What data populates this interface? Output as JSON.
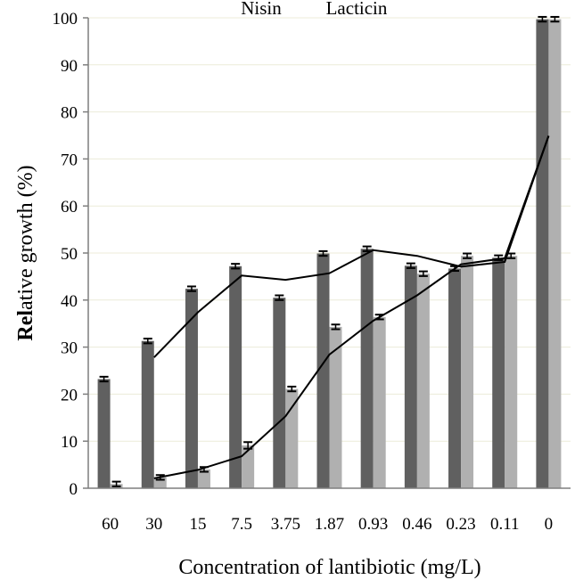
{
  "chart_data": {
    "type": "bar",
    "categories": [
      "60",
      "30",
      "15",
      "7.5",
      "3.75",
      "1.87",
      "0.93",
      "0.46",
      "0.23",
      "0.11",
      "0"
    ],
    "series": [
      {
        "name": "Nisin",
        "values": [
          23.2,
          31.3,
          42.4,
          47.2,
          40.5,
          49.9,
          50.9,
          47.3,
          46.7,
          49.0,
          99.7
        ],
        "errors": [
          0.5,
          0.5,
          0.5,
          0.5,
          0.5,
          0.5,
          0.5,
          0.5,
          0.5,
          0.5,
          0.5
        ],
        "color": "#606060"
      },
      {
        "name": "Lacticin",
        "values": [
          0.9,
          2.3,
          4.0,
          9.1,
          21.1,
          34.3,
          36.4,
          45.6,
          49.4,
          49.4,
          99.7
        ],
        "errors": [
          0.5,
          0.5,
          0.5,
          0.7,
          0.5,
          0.5,
          0.5,
          0.5,
          0.5,
          0.5,
          0.5
        ],
        "color": "#b0b0b0"
      }
    ],
    "trendlines": [
      {
        "series": "Nisin",
        "x_start_index": 1,
        "values": [
          27.8,
          37.4,
          45.2,
          44.3,
          45.7,
          50.6,
          49.4,
          47.1,
          48.1,
          74.9
        ]
      },
      {
        "series": "Lacticin",
        "x_start_index": 1,
        "values": [
          2.1,
          3.9,
          6.8,
          15.3,
          28.4,
          35.6,
          41.0,
          47.6,
          48.9,
          74.9
        ]
      }
    ],
    "ylabel_bold": "Rel",
    "ylabel_rest": "ative growth (%)",
    "xlabel": "Concentration of lantibiotic (mg/L)",
    "ylim": [
      0,
      100
    ],
    "yticks": [
      0,
      10,
      20,
      30,
      40,
      50,
      60,
      70,
      80,
      90,
      100
    ],
    "grid": true,
    "legend_position": "top"
  }
}
